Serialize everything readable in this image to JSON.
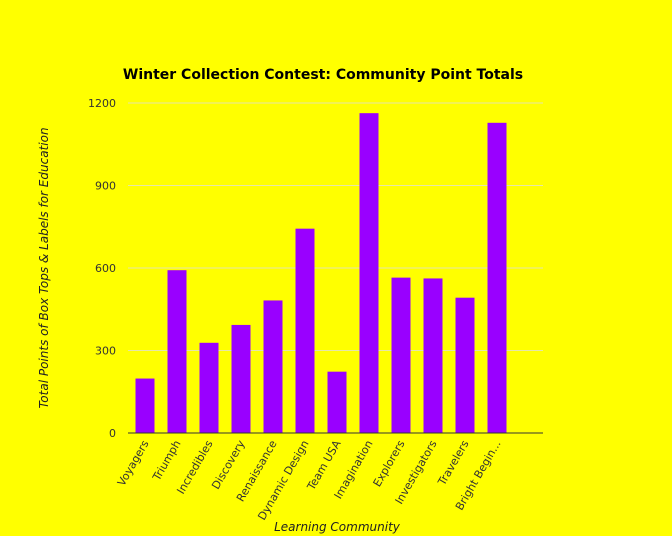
{
  "chart_data": {
    "type": "bar",
    "title": "Winter Collection Contest: Community Point Totals",
    "xlabel": "Learning Community",
    "ylabel": "Total Points of Box Tops & Labels for Education",
    "categories": [
      "Voyagers",
      "Triumph",
      "Incredibles",
      "Discovery",
      "Renaissance",
      "Dynamic Design",
      "Team USA",
      "Imagination",
      "Explorers",
      "Investigators",
      "Travelers",
      "Bright Begin..."
    ],
    "values": [
      198,
      592,
      328,
      393,
      482,
      743,
      223,
      1163,
      565,
      562,
      492,
      1128
    ],
    "ylim": [
      0,
      1200
    ],
    "yticks": [
      0,
      300,
      600,
      900,
      1200
    ],
    "grid": true,
    "legend": "none",
    "colors": {
      "background": "#ffff00",
      "bar": "#9900ff",
      "grid": "#e6e6a8",
      "axis": "#333333"
    }
  }
}
